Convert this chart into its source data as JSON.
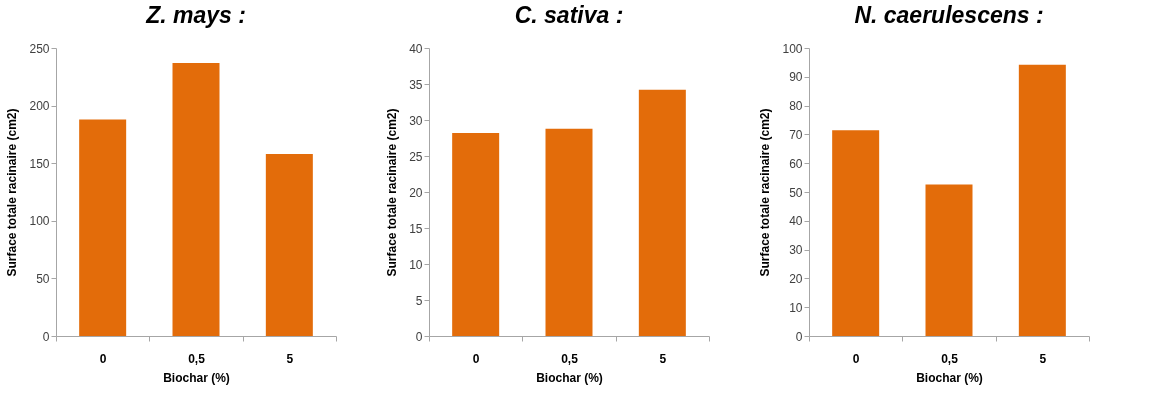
{
  "chart_data": [
    {
      "type": "bar",
      "title": "Z. mays :",
      "xlabel": "Biochar (%)",
      "ylabel": "Surface totale racinaire (cm2)",
      "categories": [
        "0",
        "0,5",
        "5"
      ],
      "values": [
        188,
        237,
        158
      ],
      "color": "#e36c0a",
      "ylim": [
        0,
        250
      ],
      "yticks": [
        0,
        50,
        100,
        150,
        200,
        250
      ],
      "grid": false
    },
    {
      "type": "bar",
      "title": "C. sativa :",
      "xlabel": "Biochar (%)",
      "ylabel": "Surface totale racinaire (cm2)",
      "categories": [
        "0",
        "0,5",
        "5"
      ],
      "values": [
        28.2,
        28.8,
        34.2
      ],
      "color": "#e36c0a",
      "ylim": [
        0,
        40
      ],
      "yticks": [
        0,
        5,
        10,
        15,
        20,
        25,
        30,
        35,
        40
      ],
      "grid": false
    },
    {
      "type": "bar",
      "title": "N. caerulescens :",
      "xlabel": "Biochar (%)",
      "ylabel": "Surface totale racinaire (cm2)",
      "categories": [
        "0",
        "0,5",
        "5"
      ],
      "values": [
        71.4,
        52.6,
        94.2
      ],
      "color": "#e36c0a",
      "ylim": [
        0,
        100
      ],
      "yticks": [
        0,
        10,
        20,
        30,
        40,
        50,
        60,
        70,
        80,
        90,
        100
      ],
      "grid": false
    }
  ]
}
